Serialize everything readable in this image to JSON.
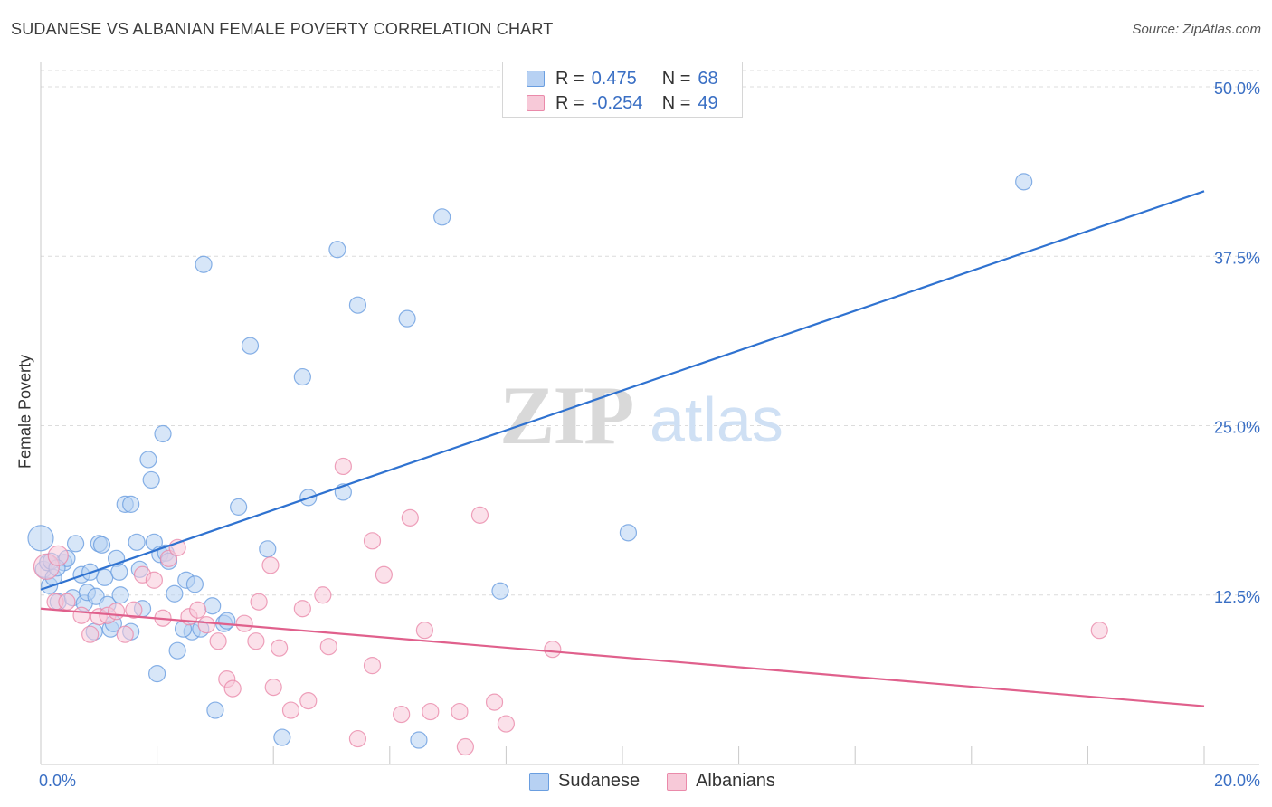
{
  "header": {
    "title": "SUDANESE VS ALBANIAN FEMALE POVERTY CORRELATION CHART",
    "source": "Source: ZipAtlas.com"
  },
  "watermark": {
    "zip": "ZIP",
    "atlas": "atlas"
  },
  "legend": {
    "rows": [
      {
        "r_label": "R =",
        "r_value": "0.475",
        "n_label": "N =",
        "n_value": "68",
        "color": "#a9c8f0",
        "border": "#6a9ee0"
      },
      {
        "r_label": "R =",
        "r_value": "-0.254",
        "n_label": "N =",
        "n_value": "49",
        "color": "#f7c2d2",
        "border": "#ea8aaa"
      }
    ]
  },
  "bottom_legend": {
    "items": [
      "Sudanese",
      "Albanians"
    ]
  },
  "chart_data": {
    "type": "scatter",
    "title": "SUDANESE VS ALBANIAN FEMALE POVERTY CORRELATION CHART",
    "xlabel": "",
    "ylabel": "Female Poverty",
    "xlim": [
      0,
      20
    ],
    "ylim": [
      0,
      50
    ],
    "x_tick_labels": [
      "0.0%",
      "20.0%"
    ],
    "y_ticks": [
      12.5,
      25.0,
      37.5,
      50.0
    ],
    "y_tick_labels": [
      "12.5%",
      "25.0%",
      "37.5%",
      "50.0%"
    ],
    "grid": true,
    "legend_position": "top-center",
    "series": [
      {
        "name": "Sudanese",
        "color": "#6a9ee0",
        "fill": "#b7d1f3",
        "trend": {
          "x0": 0,
          "y0": 12.9,
          "x1": 20,
          "y1": 42.3,
          "color": "#2f72d0"
        },
        "points": [
          [
            0.0,
            16.7,
            14
          ],
          [
            0.05,
            14.4,
            9
          ],
          [
            0.12,
            14.9,
            9
          ],
          [
            0.15,
            13.2,
            9
          ],
          [
            0.22,
            13.8,
            9
          ],
          [
            0.3,
            12.0,
            9
          ],
          [
            0.4,
            14.9,
            9
          ],
          [
            0.45,
            15.2,
            9
          ],
          [
            0.55,
            12.3,
            9
          ],
          [
            0.7,
            14.0,
            9
          ],
          [
            0.6,
            16.3,
            9
          ],
          [
            0.75,
            11.9,
            9
          ],
          [
            0.8,
            12.7,
            9
          ],
          [
            0.92,
            9.8,
            9
          ],
          [
            0.95,
            12.4,
            9
          ],
          [
            1.0,
            16.3,
            9
          ],
          [
            1.05,
            16.2,
            9
          ],
          [
            1.1,
            13.8,
            9
          ],
          [
            1.15,
            11.8,
            9
          ],
          [
            1.2,
            10.0,
            9
          ],
          [
            1.3,
            15.2,
            9
          ],
          [
            1.35,
            14.2,
            9
          ],
          [
            1.37,
            12.5,
            9
          ],
          [
            1.45,
            19.2,
            9
          ],
          [
            1.55,
            9.8,
            9
          ],
          [
            1.55,
            19.2,
            9
          ],
          [
            1.65,
            16.4,
            9
          ],
          [
            1.7,
            14.4,
            9
          ],
          [
            1.75,
            11.5,
            9
          ],
          [
            1.85,
            22.5,
            9
          ],
          [
            1.9,
            21.0,
            9
          ],
          [
            1.95,
            16.4,
            9
          ],
          [
            2.0,
            6.7,
            9
          ],
          [
            2.05,
            15.5,
            9
          ],
          [
            2.1,
            24.4,
            9
          ],
          [
            2.15,
            15.6,
            9
          ],
          [
            2.2,
            15.0,
            9
          ],
          [
            2.3,
            12.6,
            9
          ],
          [
            2.35,
            8.4,
            9
          ],
          [
            2.5,
            13.6,
            9
          ],
          [
            2.6,
            9.8,
            9
          ],
          [
            2.65,
            13.3,
            9
          ],
          [
            2.75,
            10.0,
            9
          ],
          [
            2.8,
            36.9,
            9
          ],
          [
            2.95,
            11.7,
            9
          ],
          [
            3.0,
            4.0,
            9
          ],
          [
            3.15,
            10.4,
            9
          ],
          [
            3.2,
            10.6,
            9
          ],
          [
            3.4,
            19.0,
            9
          ],
          [
            3.6,
            30.9,
            9
          ],
          [
            3.9,
            15.9,
            9
          ],
          [
            4.15,
            2.0,
            9
          ],
          [
            4.5,
            28.6,
            9
          ],
          [
            4.6,
            19.7,
            9
          ],
          [
            5.1,
            38.0,
            9
          ],
          [
            5.2,
            20.1,
            9
          ],
          [
            5.45,
            33.9,
            9
          ],
          [
            6.3,
            32.9,
            9
          ],
          [
            6.5,
            1.8,
            9
          ],
          [
            6.9,
            40.4,
            9
          ],
          [
            7.9,
            12.8,
            9
          ],
          [
            10.1,
            17.1,
            9
          ],
          [
            16.9,
            43.0,
            9
          ],
          [
            0.18,
            15.0,
            9
          ],
          [
            0.28,
            14.5,
            9
          ],
          [
            1.25,
            10.4,
            9
          ],
          [
            0.85,
            14.2,
            9
          ],
          [
            2.45,
            10.0,
            9
          ]
        ]
      },
      {
        "name": "Albanians",
        "color": "#ea8aaa",
        "fill": "#f7c9d8",
        "trend": {
          "x0": 0,
          "y0": 11.5,
          "x1": 20,
          "y1": 4.3,
          "color": "#e0608c"
        },
        "points": [
          [
            0.1,
            14.6,
            14
          ],
          [
            0.3,
            15.4,
            11
          ],
          [
            0.25,
            12.0,
            9
          ],
          [
            0.45,
            12.0,
            9
          ],
          [
            0.7,
            11.0,
            9
          ],
          [
            0.85,
            9.6,
            9
          ],
          [
            1.0,
            10.9,
            9
          ],
          [
            1.15,
            11.0,
            9
          ],
          [
            1.3,
            11.3,
            9
          ],
          [
            1.45,
            9.6,
            9
          ],
          [
            1.6,
            11.4,
            9
          ],
          [
            1.75,
            14.0,
            9
          ],
          [
            1.95,
            13.6,
            9
          ],
          [
            2.1,
            10.8,
            9
          ],
          [
            2.2,
            15.2,
            9
          ],
          [
            2.35,
            16.0,
            9
          ],
          [
            2.55,
            10.9,
            9
          ],
          [
            2.7,
            11.4,
            9
          ],
          [
            2.85,
            10.3,
            9
          ],
          [
            3.05,
            9.1,
            9
          ],
          [
            3.2,
            6.3,
            9
          ],
          [
            3.3,
            5.6,
            9
          ],
          [
            3.5,
            10.4,
            9
          ],
          [
            3.7,
            9.1,
            9
          ],
          [
            3.75,
            12.0,
            9
          ],
          [
            3.95,
            14.7,
            9
          ],
          [
            4.0,
            5.7,
            9
          ],
          [
            4.1,
            8.6,
            9
          ],
          [
            4.3,
            4.0,
            9
          ],
          [
            4.5,
            11.5,
            9
          ],
          [
            4.6,
            4.7,
            9
          ],
          [
            4.85,
            12.5,
            9
          ],
          [
            4.95,
            8.7,
            9
          ],
          [
            5.2,
            22.0,
            9
          ],
          [
            5.45,
            1.9,
            9
          ],
          [
            5.7,
            7.3,
            9
          ],
          [
            5.7,
            16.5,
            9
          ],
          [
            5.9,
            14.0,
            9
          ],
          [
            6.2,
            3.7,
            9
          ],
          [
            6.35,
            18.2,
            9
          ],
          [
            6.6,
            9.9,
            9
          ],
          [
            6.7,
            3.9,
            9
          ],
          [
            7.2,
            3.9,
            9
          ],
          [
            7.3,
            1.3,
            9
          ],
          [
            7.55,
            18.4,
            9
          ],
          [
            7.8,
            4.6,
            9
          ],
          [
            8.0,
            3.0,
            9
          ],
          [
            8.8,
            8.5,
            9
          ],
          [
            18.2,
            9.9,
            9
          ]
        ]
      }
    ]
  }
}
